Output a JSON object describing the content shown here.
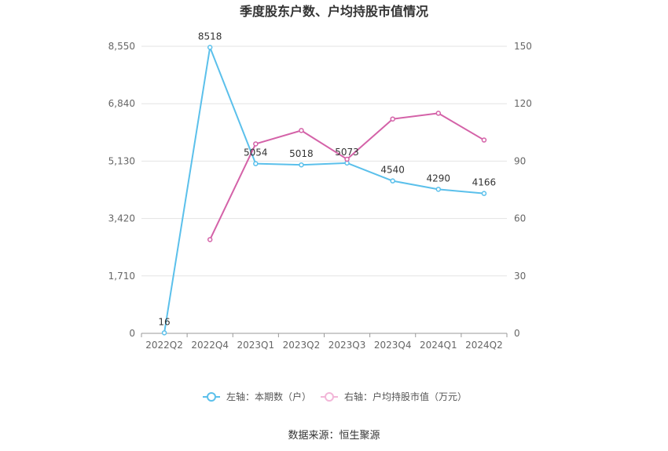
{
  "chart_data": {
    "type": "line",
    "title": "季度股东户数、户均持股市值情况",
    "categories": [
      "2022Q2",
      "2022Q4",
      "2023Q1",
      "2023Q2",
      "2023Q3",
      "2023Q4",
      "2024Q1",
      "2024Q2"
    ],
    "left_axis": {
      "ticks": [
        "0",
        "1,710",
        "3,420",
        "5,130",
        "6,840",
        "8,550"
      ],
      "min": 0,
      "max": 8550
    },
    "right_axis": {
      "ticks": [
        "0",
        "30",
        "60",
        "90",
        "120",
        "150"
      ],
      "min": 0,
      "max": 150
    },
    "series": [
      {
        "name": "左轴：本期数（户）",
        "axis": "left",
        "color": "#5bc0eb",
        "values": [
          16,
          8518,
          5054,
          5018,
          5073,
          4540,
          4290,
          4166
        ],
        "labels": [
          "16",
          "8518",
          "5054",
          "5018",
          "5073",
          "4540",
          "4290",
          "4166"
        ]
      },
      {
        "name": "右轴：户均持股市值（万元）",
        "axis": "right",
        "color": "#d462a8",
        "values": [
          null,
          49,
          99,
          106,
          91,
          112,
          115,
          101
        ]
      }
    ],
    "grid": true,
    "legend_position": "bottom"
  },
  "source": "数据来源：恒生聚源"
}
